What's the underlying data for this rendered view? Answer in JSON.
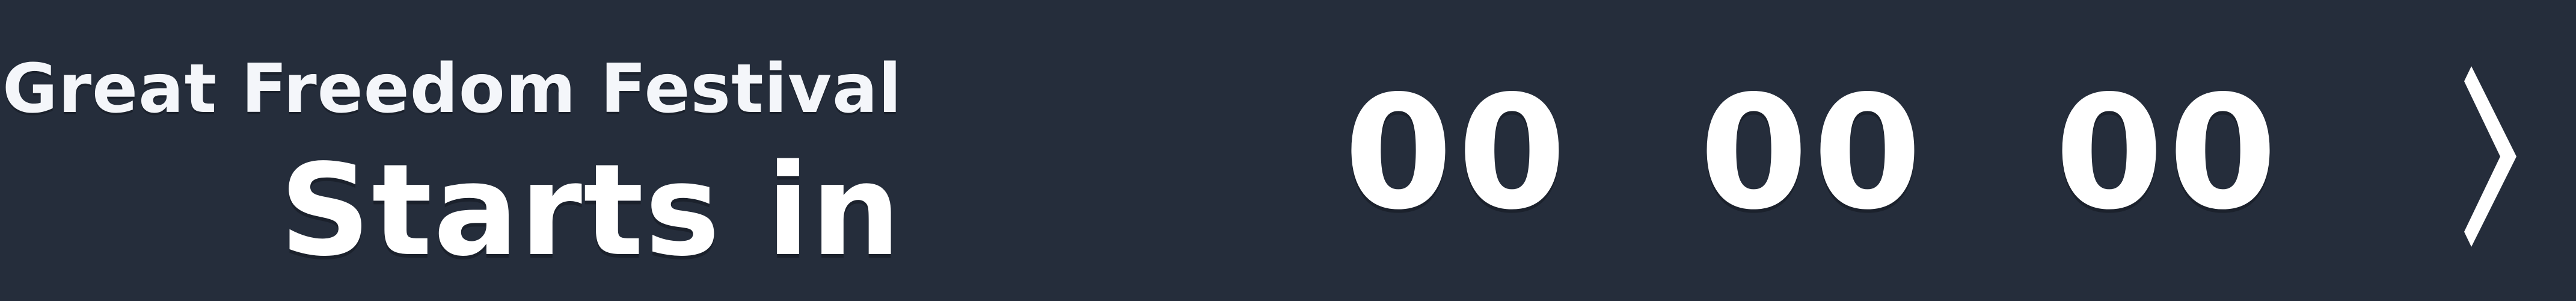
{
  "banner": {
    "event_name": "Great Freedom Festival",
    "starts_in_label": "Starts in",
    "colors": {
      "background": "#252d3b",
      "text": "#ffffff"
    }
  },
  "countdown": {
    "units": [
      "00",
      "00",
      "00"
    ]
  },
  "next_button": {
    "icon": "chevron-right-icon"
  }
}
